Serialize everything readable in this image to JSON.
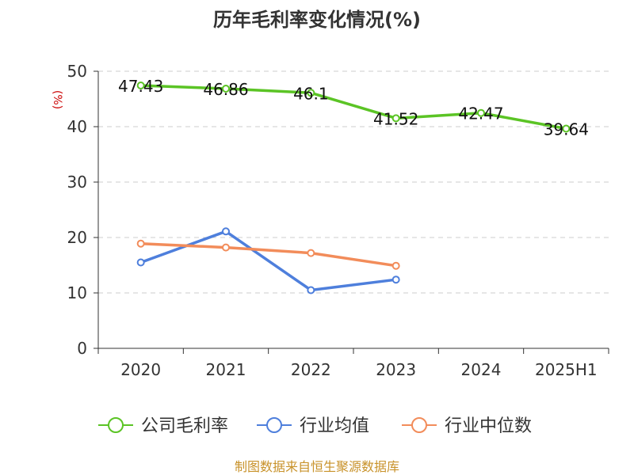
{
  "chart_data": {
    "type": "line",
    "title": "历年毛利率变化情况(%)",
    "ylabel": "(%)",
    "xlabel": "",
    "categories": [
      "2020",
      "2021",
      "2022",
      "2023",
      "2024",
      "2025H1"
    ],
    "y_ticks": [
      "0",
      "10",
      "20",
      "30",
      "40",
      "50"
    ],
    "ylim": [
      0,
      50
    ],
    "grid": true,
    "legend_position": "bottom",
    "series": [
      {
        "name": "公司毛利率",
        "color": "#5bc425",
        "values": [
          47.43,
          46.86,
          46.1,
          41.52,
          42.47,
          39.64
        ],
        "labels": [
          "47.43",
          "46.86",
          "46.1",
          "41.52",
          "42.47",
          "39.64"
        ]
      },
      {
        "name": "行业均值",
        "color": "#4e7fdc",
        "values": [
          15.5,
          21.1,
          10.5,
          12.4,
          null,
          null
        ]
      },
      {
        "name": "行业中位数",
        "color": "#f28c5a",
        "values": [
          18.9,
          18.2,
          17.2,
          14.9,
          null,
          null
        ]
      }
    ],
    "source": "制图数据来自恒生聚源数据库"
  }
}
